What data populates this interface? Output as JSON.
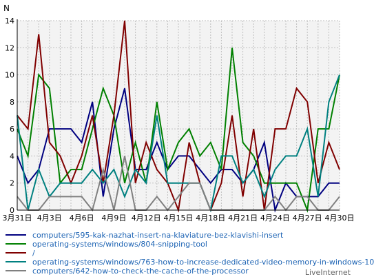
{
  "chart_data": {
    "type": "line",
    "ylabel": "N",
    "ylim": [
      0,
      14
    ],
    "yticks": [
      0,
      2,
      4,
      6,
      8,
      10,
      12,
      14
    ],
    "grid": true,
    "legend_position": "bottom",
    "x_labels": [
      {
        "index": 0,
        "label": "3月31日"
      },
      {
        "index": 3,
        "label": "4月3日"
      },
      {
        "index": 6,
        "label": "4月6日"
      },
      {
        "index": 9,
        "label": "4月9日"
      },
      {
        "index": 12,
        "label": "4月12日"
      },
      {
        "index": 15,
        "label": "4月15日"
      },
      {
        "index": 18,
        "label": "4月18日"
      },
      {
        "index": 21,
        "label": "4月21日"
      },
      {
        "index": 24,
        "label": "4月24日"
      },
      {
        "index": 27,
        "label": "4月27日"
      },
      {
        "index": 30,
        "label": "4月30日"
      }
    ],
    "series": [
      {
        "name": "computers/595-kak-nazhat-insert-na-klaviature-bez-klavishi-insert",
        "color": "#000080",
        "values": [
          4,
          2,
          3,
          6,
          6,
          6,
          5,
          8,
          1,
          6,
          9,
          3,
          3,
          5,
          3,
          4,
          4,
          3,
          2,
          3,
          3,
          2,
          3,
          5,
          0,
          2,
          1,
          1,
          1,
          2,
          2
        ]
      },
      {
        "name": "operating-systems/windows/804-snipping-tool",
        "color": "#008000",
        "values": [
          6,
          4,
          10,
          9,
          2,
          3,
          3,
          6,
          9,
          7,
          2,
          5,
          2,
          8,
          3,
          5,
          6,
          4,
          5,
          3,
          12,
          5,
          4,
          2,
          2,
          2,
          2,
          0,
          6,
          6,
          10
        ]
      },
      {
        "name": "/",
        "color": "#800000",
        "values": [
          7,
          6,
          13,
          5,
          4,
          2,
          4,
          7,
          2,
          7,
          14,
          2,
          5,
          3,
          2,
          0,
          5,
          2,
          0,
          2,
          7,
          1,
          6,
          0,
          6,
          6,
          9,
          8,
          2,
          5,
          3
        ]
      },
      {
        "name": "operating-systems/windows/763-how-to-increase-dedicated-video-memory-in-windows-10",
        "color": "#008080",
        "values": [
          7,
          0,
          3,
          1,
          2,
          2,
          2,
          3,
          2,
          3,
          1,
          3,
          2,
          7,
          2,
          2,
          2,
          2,
          0,
          4,
          4,
          2,
          3,
          1,
          3,
          4,
          4,
          6,
          1,
          8,
          10
        ]
      },
      {
        "name": "computers/642-how-to-check-the-cache-of-the-processor",
        "color": "#808080",
        "values": [
          1,
          0,
          0,
          1,
          1,
          1,
          1,
          0,
          3,
          0,
          4,
          0,
          0,
          1,
          0,
          1,
          2,
          2,
          0,
          0,
          0,
          0,
          0,
          0,
          1,
          0,
          1,
          1,
          0,
          0,
          1
        ]
      }
    ]
  },
  "credit": "LiveInternet"
}
